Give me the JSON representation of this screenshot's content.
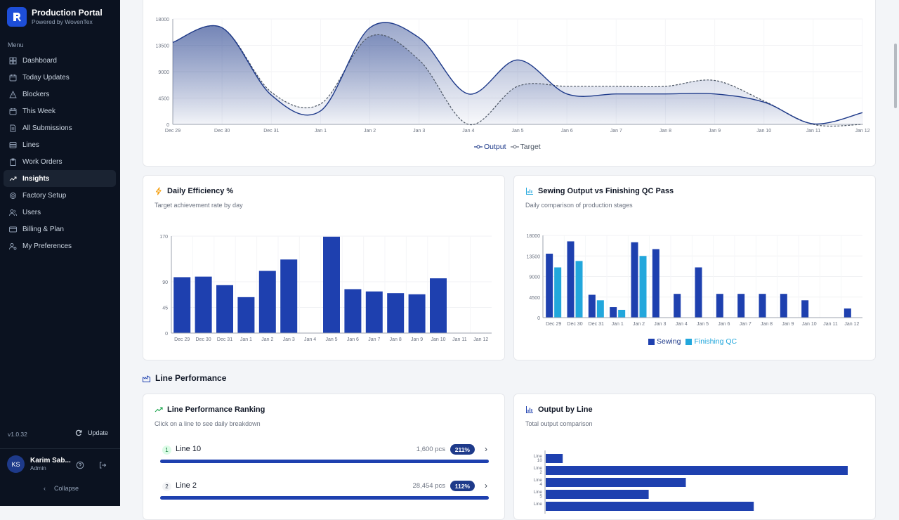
{
  "app": {
    "title": "Production Portal",
    "subtitle": "Powered by WovenTex",
    "version": "v1.0.32",
    "update_label": "Update",
    "collapse_label": "Collapse"
  },
  "menu": {
    "label": "Menu",
    "items": [
      {
        "label": "Dashboard",
        "icon": "grid-icon"
      },
      {
        "label": "Today Updates",
        "icon": "calendar-icon"
      },
      {
        "label": "Blockers",
        "icon": "alert-triangle-icon"
      },
      {
        "label": "This Week",
        "icon": "calendar-icon"
      },
      {
        "label": "All Submissions",
        "icon": "document-icon"
      },
      {
        "label": "Lines",
        "icon": "list-icon"
      },
      {
        "label": "Work Orders",
        "icon": "clipboard-icon"
      },
      {
        "label": "Insights",
        "icon": "trending-up-icon",
        "active": true
      },
      {
        "label": "Factory Setup",
        "icon": "gear-icon"
      },
      {
        "label": "Users",
        "icon": "users-icon"
      },
      {
        "label": "Billing & Plan",
        "icon": "credit-card-icon"
      },
      {
        "label": "My Preferences",
        "icon": "user-settings-icon"
      }
    ]
  },
  "user": {
    "initials": "KS",
    "name": "Karim Sab...",
    "role": "Admin"
  },
  "colors": {
    "accent": "#1e40af",
    "sidebar": "#0b1220",
    "light_blue": "#22a7dc"
  },
  "output_chart": {
    "legend": [
      "Output",
      "Target"
    ],
    "chart_data": {
      "type": "area",
      "categories": [
        "Dec 29",
        "Dec 30",
        "Dec 31",
        "Jan 1",
        "Jan 2",
        "Jan 3",
        "Jan 4",
        "Jan 5",
        "Jan 6",
        "Jan 7",
        "Jan 8",
        "Jan 9",
        "Jan 10",
        "Jan 11",
        "Jan 12"
      ],
      "yticks": [
        0,
        4500,
        9000,
        13500,
        18000
      ],
      "ylim": [
        0,
        18000
      ],
      "series": [
        {
          "name": "Output",
          "values": [
            14000,
            16500,
            5000,
            2300,
            16500,
            14800,
            5200,
            11000,
            5200,
            5200,
            5200,
            5200,
            3800,
            100,
            2000
          ]
        },
        {
          "name": "Target",
          "values": [
            14000,
            16500,
            5500,
            3500,
            15000,
            11000,
            0,
            6500,
            6500,
            6500,
            6500,
            7500,
            4000,
            0,
            0
          ]
        }
      ]
    }
  },
  "efficiency": {
    "title": "Daily Efficiency %",
    "subtitle": "Target achievement rate by day",
    "chart_data": {
      "type": "bar",
      "categories": [
        "Dec 29",
        "Dec 30",
        "Dec 31",
        "Jan 1",
        "Jan 2",
        "Jan 3",
        "Jan 4",
        "Jan 5",
        "Jan 6",
        "Jan 7",
        "Jan 8",
        "Jan 9",
        "Jan 10",
        "Jan 11",
        "Jan 12"
      ],
      "yticks": [
        0,
        45,
        90,
        170
      ],
      "ylim": [
        0,
        170
      ],
      "values": [
        98,
        99,
        84,
        63,
        109,
        129,
        0,
        169,
        77,
        73,
        70,
        68,
        96,
        0,
        0
      ]
    }
  },
  "sewing_vs_qc": {
    "title": "Sewing Output vs Finishing QC Pass",
    "subtitle": "Daily comparison of production stages",
    "legend": [
      "Sewing",
      "Finishing QC"
    ],
    "chart_data": {
      "type": "bar",
      "categories": [
        "Dec 29",
        "Dec 30",
        "Dec 31",
        "Jan 1",
        "Jan 2",
        "Jan 3",
        "Jan 4",
        "Jan 5",
        "Jan 6",
        "Jan 7",
        "Jan 8",
        "Jan 9",
        "Jan 10",
        "Jan 11",
        "Jan 12"
      ],
      "yticks": [
        0,
        4500,
        9000,
        13500,
        18000
      ],
      "ylim": [
        0,
        18000
      ],
      "series": [
        {
          "name": "Sewing",
          "values": [
            14000,
            16700,
            5000,
            2300,
            16500,
            15000,
            5200,
            11000,
            5200,
            5200,
            5200,
            5200,
            3800,
            0,
            2000
          ]
        },
        {
          "name": "Finishing QC",
          "values": [
            11000,
            12400,
            3800,
            1700,
            13500,
            0,
            0,
            0,
            0,
            0,
            0,
            0,
            0,
            0,
            0
          ]
        }
      ]
    }
  },
  "line_performance": {
    "section_title": "Line Performance",
    "ranking": {
      "title": "Line Performance Ranking",
      "subtitle": "Click on a line to see daily breakdown",
      "rows": [
        {
          "rank": "1",
          "name": "Line 10",
          "pcs": "1,600 pcs",
          "badge": "211%",
          "fill": 1.0
        },
        {
          "rank": "2",
          "name": "Line 2",
          "pcs": "28,454 pcs",
          "badge": "112%",
          "fill": 1.0
        }
      ]
    },
    "output_by_line": {
      "title": "Output by Line",
      "subtitle": "Total output comparison",
      "chart_data": {
        "type": "bar",
        "orientation": "horizontal",
        "categories": [
          "Line 10",
          "Line 2",
          "Line 4",
          "Line 5",
          "Line"
        ],
        "values": [
          1600,
          28454,
          13200,
          9700,
          19600
        ]
      }
    }
  }
}
